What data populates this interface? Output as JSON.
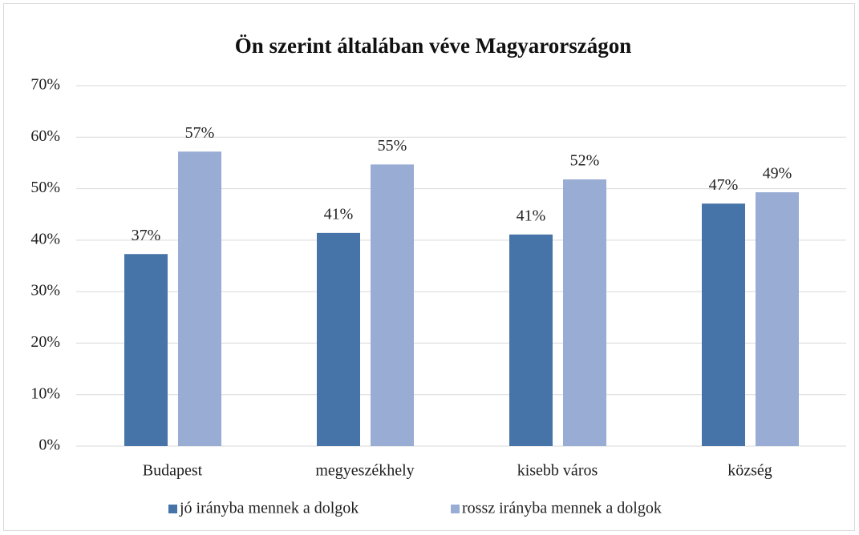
{
  "chart_data": {
    "type": "bar",
    "title": "Ön szerint általában véve Magyarországon",
    "categories": [
      "Budapest",
      "megyeszékhely",
      "kisebb város",
      "község"
    ],
    "series": [
      {
        "name": "jó irányba mennek a dolgok",
        "color": "#4674a8",
        "values": [
          37.3,
          41.4,
          41.1,
          47.1
        ],
        "value_labels": [
          "37%",
          "41%",
          "41%",
          "47%"
        ]
      },
      {
        "name": "rossz irányba mennek a dolgok",
        "color": "#98acd4",
        "values": [
          57.2,
          54.7,
          51.8,
          49.3
        ],
        "value_labels": [
          "57%",
          "55%",
          "52%",
          "49%"
        ]
      }
    ],
    "ylim": [
      0,
      70
    ],
    "yticks": [
      {
        "value": 0,
        "label": "0%"
      },
      {
        "value": 10,
        "label": "10%"
      },
      {
        "value": 20,
        "label": "20%"
      },
      {
        "value": 30,
        "label": "30%"
      },
      {
        "value": 40,
        "label": "40%"
      },
      {
        "value": 50,
        "label": "50%"
      },
      {
        "value": 60,
        "label": "60%"
      },
      {
        "value": 70,
        "label": "70%"
      }
    ],
    "grid": true,
    "legend": "bottom"
  }
}
